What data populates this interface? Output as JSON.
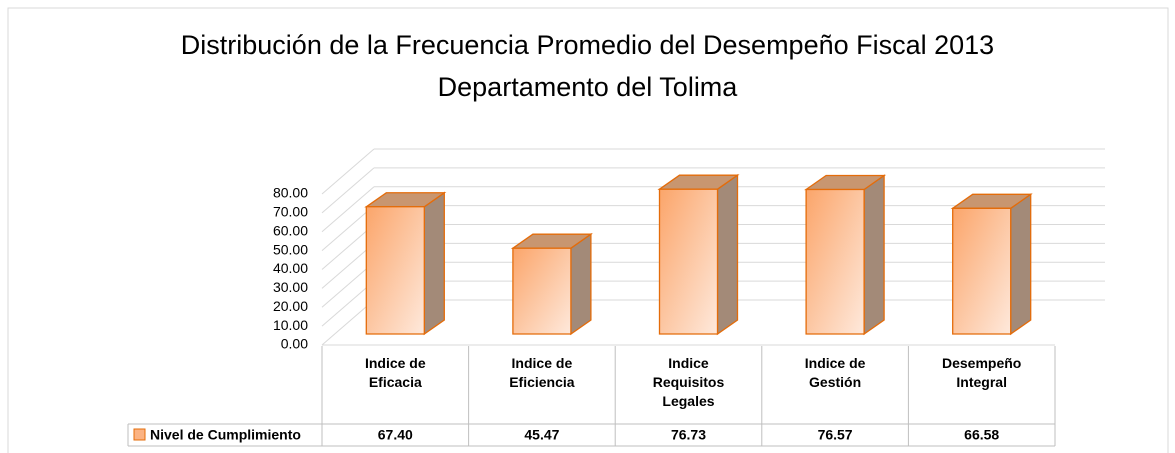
{
  "chart_data": {
    "type": "bar3d",
    "title": "Distribución de la Frecuencia Promedio del Desempeño Fiscal 2013",
    "subtitle": "Departamento del Tolima",
    "categories": [
      "Indice de Eficacia",
      "Indice de Eficiencia",
      "Indice Requisitos Legales",
      "Indice de Gestión",
      "Desempeño Integral"
    ],
    "series": [
      {
        "name": "Nivel de Cumplimiento",
        "color": "#fbb383",
        "values": [
          67.4,
          45.47,
          76.73,
          76.57,
          66.58
        ],
        "value_labels": [
          "67.40",
          "45.47",
          "76.73",
          "76.57",
          "66.58"
        ]
      }
    ],
    "ylim": [
      0,
      80
    ],
    "yticks": [
      {
        "value": 0,
        "label": "0.00"
      },
      {
        "value": 10,
        "label": "10.00"
      },
      {
        "value": 20,
        "label": "20.00"
      },
      {
        "value": 30,
        "label": "30.00"
      },
      {
        "value": 40,
        "label": "40.00"
      },
      {
        "value": 50,
        "label": "50.00"
      },
      {
        "value": 60,
        "label": "60.00"
      },
      {
        "value": 70,
        "label": "70.00"
      },
      {
        "value": 80,
        "label": "80.00"
      }
    ],
    "grid": true,
    "data_table": true
  }
}
